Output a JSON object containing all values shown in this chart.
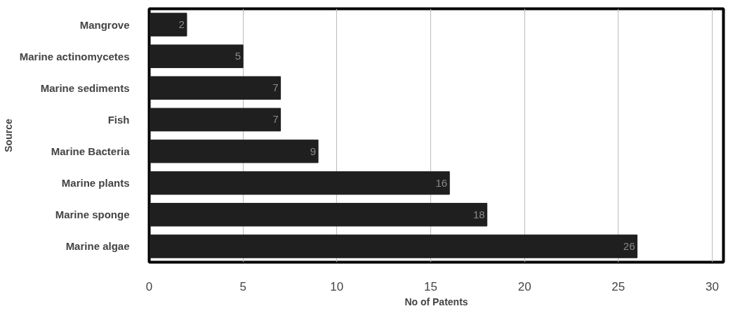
{
  "chart_data": {
    "type": "bar",
    "orientation": "horizontal",
    "xlabel": "No of Patents",
    "ylabel": "Source",
    "categories": [
      "Mangrove",
      "Marine actinomycetes",
      "Marine sediments",
      "Fish",
      "Marine Bacteria",
      "Marine plants",
      "Marine sponge",
      "Marine algae"
    ],
    "values": [
      2,
      5,
      7,
      7,
      9,
      16,
      18,
      26
    ],
    "color": "#1f1f1f",
    "data_labels": true,
    "xlim": [
      0,
      30
    ],
    "xticks": [
      0,
      5,
      10,
      15,
      20,
      25,
      30
    ],
    "grid": "x"
  }
}
